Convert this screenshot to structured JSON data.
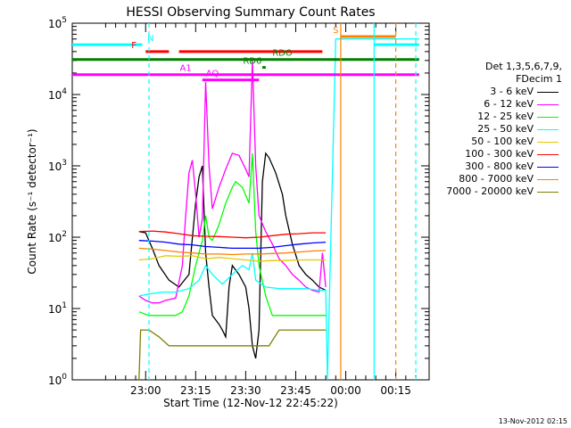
{
  "chart_data": {
    "type": "line",
    "title": "HESSI Observing Summary Count Rates",
    "xlabel": "Start Time (12-Nov-12 22:45:22)",
    "ylabel": "Count Rate (s⁻¹ detector⁻¹)",
    "yscale": "log",
    "ylim": [
      1,
      100000
    ],
    "xlim_minutes": [
      -7,
      100
    ],
    "x_ticks": [
      {
        "m": 15,
        "label": "23:00"
      },
      {
        "m": 30,
        "label": "23:15"
      },
      {
        "m": 45,
        "label": "23:30"
      },
      {
        "m": 60,
        "label": "23:45"
      },
      {
        "m": 75,
        "label": "00:00"
      },
      {
        "m": 90,
        "label": "00:15"
      }
    ],
    "y_ticks": [
      {
        "v": 1,
        "base": "10",
        "exp": "0"
      },
      {
        "v": 10,
        "base": "10",
        "exp": "1"
      },
      {
        "v": 100,
        "base": "10",
        "exp": "2"
      },
      {
        "v": 1000,
        "base": "10",
        "exp": "3"
      },
      {
        "v": 10000,
        "base": "10",
        "exp": "4"
      },
      {
        "v": 100000,
        "base": "10",
        "exp": "5"
      }
    ],
    "legend": {
      "header": [
        "Det 1,3,5,6,7,9,",
        "FDecim 1"
      ],
      "entries": [
        {
          "label": "3 - 6 keV",
          "color": "#000000"
        },
        {
          "label": "6 - 12 keV",
          "color": "#ff00ff"
        },
        {
          "label": "12 - 25 keV",
          "color": "#00ff00"
        },
        {
          "label": "25 - 50 keV",
          "color": "#00ffff"
        },
        {
          "label": "50 - 100 keV",
          "color": "#e6c800"
        },
        {
          "label": "100 - 300 keV",
          "color": "#ff0000"
        },
        {
          "label": "300 - 800 keV",
          "color": "#0000ff"
        },
        {
          "label": "800 - 7000 keV",
          "color": "#ff8000"
        },
        {
          "label": "7000 - 20000 keV",
          "color": "#808000"
        }
      ]
    },
    "series": [
      {
        "name": "3 - 6 keV",
        "color": "#000000",
        "points": [
          [
            13,
            120
          ],
          [
            15,
            115
          ],
          [
            17,
            70
          ],
          [
            19,
            40
          ],
          [
            22,
            25
          ],
          [
            25,
            20
          ],
          [
            28,
            30
          ],
          [
            30,
            300
          ],
          [
            31,
            700
          ],
          [
            32,
            1000
          ],
          [
            33,
            60
          ],
          [
            34,
            20
          ],
          [
            35,
            8
          ],
          [
            37,
            6
          ],
          [
            38,
            5
          ],
          [
            39,
            4
          ],
          [
            40,
            20
          ],
          [
            41,
            40
          ],
          [
            43,
            30
          ],
          [
            45,
            20
          ],
          [
            46,
            10
          ],
          [
            47,
            3
          ],
          [
            48,
            2
          ],
          [
            49,
            5
          ],
          [
            50,
            600
          ],
          [
            51,
            1500
          ],
          [
            52,
            1300
          ],
          [
            54,
            800
          ],
          [
            56,
            400
          ],
          [
            57,
            200
          ],
          [
            59,
            80
          ],
          [
            61,
            40
          ],
          [
            63,
            30
          ],
          [
            65,
            25
          ],
          [
            67,
            20
          ],
          [
            69,
            18
          ]
        ]
      },
      {
        "name": "6 - 12 keV",
        "color": "#ff00ff",
        "points": [
          [
            13,
            15
          ],
          [
            15,
            13
          ],
          [
            17,
            12
          ],
          [
            19,
            12
          ],
          [
            21,
            13
          ],
          [
            24,
            14
          ],
          [
            26,
            40
          ],
          [
            27,
            200
          ],
          [
            28,
            800
          ],
          [
            29,
            1200
          ],
          [
            30,
            400
          ],
          [
            31,
            100
          ],
          [
            32,
            180
          ],
          [
            33,
            15000
          ],
          [
            34,
            1000
          ],
          [
            35,
            250
          ],
          [
            37,
            500
          ],
          [
            39,
            900
          ],
          [
            41,
            1500
          ],
          [
            43,
            1400
          ],
          [
            45,
            900
          ],
          [
            46,
            700
          ],
          [
            47,
            30000
          ],
          [
            48,
            1000
          ],
          [
            49,
            200
          ],
          [
            51,
            120
          ],
          [
            53,
            80
          ],
          [
            55,
            50
          ],
          [
            57,
            40
          ],
          [
            59,
            30
          ],
          [
            61,
            25
          ],
          [
            63,
            20
          ],
          [
            65,
            18
          ],
          [
            67,
            17
          ],
          [
            68,
            60
          ],
          [
            69,
            20
          ]
        ]
      },
      {
        "name": "12 - 25 keV",
        "color": "#00ff00",
        "points": [
          [
            13,
            9
          ],
          [
            16,
            8
          ],
          [
            19,
            8
          ],
          [
            22,
            8
          ],
          [
            24,
            8
          ],
          [
            26,
            9
          ],
          [
            28,
            15
          ],
          [
            30,
            40
          ],
          [
            31,
            60
          ],
          [
            32,
            90
          ],
          [
            33,
            200
          ],
          [
            34,
            100
          ],
          [
            35,
            90
          ],
          [
            37,
            150
          ],
          [
            39,
            300
          ],
          [
            41,
            500
          ],
          [
            42,
            600
          ],
          [
            44,
            500
          ],
          [
            46,
            300
          ],
          [
            47,
            1500
          ],
          [
            48,
            120
          ],
          [
            49,
            40
          ],
          [
            51,
            15
          ],
          [
            53,
            8
          ],
          [
            55,
            8
          ],
          [
            58,
            8
          ],
          [
            61,
            8
          ],
          [
            64,
            8
          ],
          [
            67,
            8
          ],
          [
            69,
            8
          ]
        ]
      },
      {
        "name": "25 - 50 keV",
        "color": "#00ffff",
        "points": [
          [
            13,
            15
          ],
          [
            16,
            16
          ],
          [
            20,
            17
          ],
          [
            24,
            17
          ],
          [
            28,
            19
          ],
          [
            31,
            25
          ],
          [
            33,
            40
          ],
          [
            35,
            30
          ],
          [
            38,
            22
          ],
          [
            41,
            30
          ],
          [
            44,
            40
          ],
          [
            46,
            35
          ],
          [
            47,
            60
          ],
          [
            48,
            25
          ],
          [
            51,
            20
          ],
          [
            55,
            19
          ],
          [
            59,
            19
          ],
          [
            63,
            19
          ],
          [
            67,
            18
          ],
          [
            69,
            18
          ],
          [
            69.5,
            1
          ],
          [
            72,
            60000
          ],
          [
            75,
            60000
          ],
          [
            79,
            60000
          ],
          [
            83,
            60000
          ],
          [
            88,
            60000
          ],
          [
            93,
            60000
          ],
          [
            97,
            60000
          ]
        ]
      },
      {
        "name": "50 - 100 keV",
        "color": "#e6c800",
        "points": [
          [
            13,
            48
          ],
          [
            17,
            50
          ],
          [
            21,
            55
          ],
          [
            25,
            54
          ],
          [
            29,
            55
          ],
          [
            33,
            50
          ],
          [
            37,
            52
          ],
          [
            41,
            50
          ],
          [
            45,
            48
          ],
          [
            49,
            46
          ],
          [
            53,
            47
          ],
          [
            57,
            47
          ],
          [
            61,
            48
          ],
          [
            65,
            48
          ],
          [
            69,
            48
          ]
        ]
      },
      {
        "name": "100 - 300 keV",
        "color": "#ff0000",
        "points": [
          [
            13,
            120
          ],
          [
            17,
            122
          ],
          [
            21,
            118
          ],
          [
            25,
            112
          ],
          [
            29,
            105
          ],
          [
            33,
            103
          ],
          [
            37,
            102
          ],
          [
            41,
            100
          ],
          [
            45,
            98
          ],
          [
            49,
            100
          ],
          [
            53,
            105
          ],
          [
            57,
            110
          ],
          [
            61,
            112
          ],
          [
            65,
            115
          ],
          [
            69,
            115
          ]
        ]
      },
      {
        "name": "300 - 800 keV",
        "color": "#0000ff",
        "points": [
          [
            13,
            90
          ],
          [
            17,
            88
          ],
          [
            21,
            85
          ],
          [
            25,
            80
          ],
          [
            29,
            78
          ],
          [
            33,
            74
          ],
          [
            37,
            72
          ],
          [
            41,
            70
          ],
          [
            45,
            70
          ],
          [
            49,
            70
          ],
          [
            53,
            72
          ],
          [
            57,
            76
          ],
          [
            61,
            80
          ],
          [
            65,
            83
          ],
          [
            69,
            85
          ]
        ]
      },
      {
        "name": "800 - 7000 keV",
        "color": "#ff8000",
        "points": [
          [
            13,
            70
          ],
          [
            17,
            68
          ],
          [
            21,
            65
          ],
          [
            25,
            62
          ],
          [
            29,
            60
          ],
          [
            33,
            58
          ],
          [
            37,
            58
          ],
          [
            41,
            57
          ],
          [
            45,
            58
          ],
          [
            49,
            58
          ],
          [
            53,
            59
          ],
          [
            57,
            60
          ],
          [
            61,
            62
          ],
          [
            65,
            64
          ],
          [
            69,
            65
          ]
        ]
      },
      {
        "name": "7000 - 20000 keV",
        "color": "#808000",
        "points": [
          [
            13,
            1
          ],
          [
            13.5,
            5
          ],
          [
            16,
            5
          ],
          [
            19,
            4
          ],
          [
            22,
            3
          ],
          [
            25,
            3
          ],
          [
            28,
            3
          ],
          [
            31,
            3
          ],
          [
            34,
            3
          ],
          [
            37,
            3
          ],
          [
            40,
            3
          ],
          [
            43,
            3
          ],
          [
            46,
            3
          ],
          [
            49,
            3
          ],
          [
            52,
            3
          ],
          [
            55,
            5
          ],
          [
            58,
            5
          ],
          [
            61,
            5
          ],
          [
            65,
            5
          ],
          [
            69,
            5
          ]
        ]
      }
    ],
    "flag_bars": [
      {
        "label": "N",
        "label_m": 16.5,
        "color": "#00ffff",
        "y": 50000,
        "segments": [
          [
            -7,
            14
          ],
          [
            83.5,
            97
          ]
        ]
      },
      {
        "label": "F",
        "label_m": 11.5,
        "color": "#ff0000",
        "y": 40000,
        "segments": [
          [
            15,
            22
          ],
          [
            25,
            68
          ]
        ]
      },
      {
        "label": "S",
        "label_m": 72,
        "color": "#ff8000",
        "y": 65000,
        "segments": [
          [
            73.5,
            90
          ]
        ]
      },
      {
        "label": "RDO",
        "label_m": 56,
        "color": "#008000",
        "y": 31000,
        "segments": [
          [
            -7,
            97
          ]
        ]
      },
      {
        "label": "RD6",
        "label_m": 47,
        "color": "#008000",
        "y": 24000,
        "segments": [
          [
            50,
            51
          ]
        ]
      },
      {
        "label": "AQ",
        "label_m": 35,
        "color": "#ff00ff",
        "y": 16000,
        "segments": [
          [
            32,
            37
          ],
          [
            37,
            49
          ]
        ]
      },
      {
        "label": "A1",
        "label_m": 27,
        "color": "#ff00ff",
        "y": 19000,
        "segments": [
          [
            -7,
            97
          ]
        ]
      }
    ],
    "vlines": [
      {
        "m": 16,
        "color": "#00ffff",
        "dash": true
      },
      {
        "m": 73.5,
        "color": "#ff8000",
        "dash": false
      },
      {
        "m": 83.5,
        "color": "#00ffff",
        "dash": false
      },
      {
        "m": 90,
        "color": "#ff8000",
        "dash": true
      },
      {
        "m": 96,
        "color": "#00ffff",
        "dash": true
      }
    ]
  },
  "timestamp": "13-Nov-2012 02:15"
}
